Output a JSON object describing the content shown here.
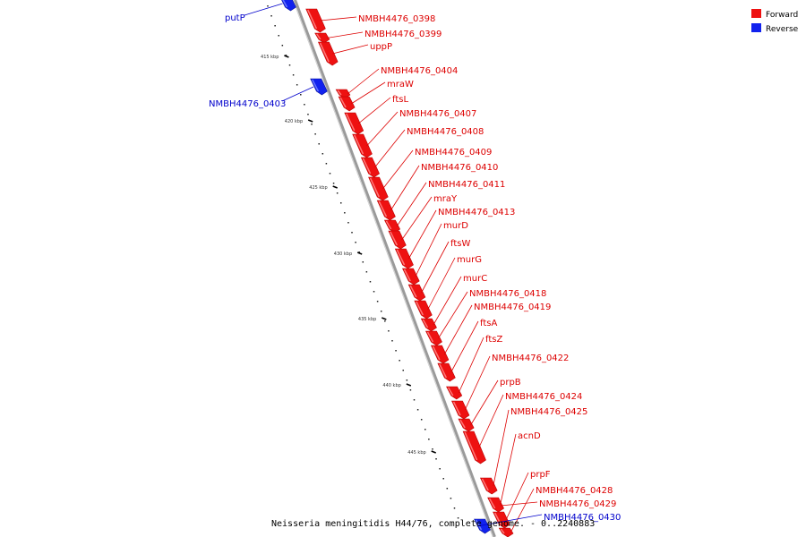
{
  "caption": "Neisseria meningitidis H44/76, complete genome. - 0..2240883",
  "legend": {
    "items": [
      {
        "label": "Forward",
        "color": "#ee1111"
      },
      {
        "label": "Reverse",
        "color": "#1122ee"
      }
    ]
  },
  "colors": {
    "forward": "#ee1111",
    "reverse": "#1122ee",
    "backbone": "#9a9a9a",
    "forward_label": "#dd0000",
    "reverse_label": "#0000cc"
  },
  "ticks": [
    "415 kbp",
    "420 kbp",
    "425 kbp",
    "430 kbp",
    "435 kbp",
    "440 kbp",
    "445 kbp"
  ],
  "genes": [
    {
      "name": "putP",
      "strand": "reverse"
    },
    {
      "name": "NMBH4476_0398",
      "strand": "forward"
    },
    {
      "name": "NMBH4476_0399",
      "strand": "forward"
    },
    {
      "name": "uppP",
      "strand": "forward"
    },
    {
      "name": "NMBH4476_0403",
      "strand": "reverse"
    },
    {
      "name": "NMBH4476_0404",
      "strand": "forward"
    },
    {
      "name": "mraW",
      "strand": "forward"
    },
    {
      "name": "ftsL",
      "strand": "forward"
    },
    {
      "name": "NMBH4476_0407",
      "strand": "forward"
    },
    {
      "name": "NMBH4476_0408",
      "strand": "forward"
    },
    {
      "name": "NMBH4476_0409",
      "strand": "forward"
    },
    {
      "name": "NMBH4476_0410",
      "strand": "forward"
    },
    {
      "name": "NMBH4476_0411",
      "strand": "forward"
    },
    {
      "name": "mraY",
      "strand": "forward"
    },
    {
      "name": "NMBH4476_0413",
      "strand": "forward"
    },
    {
      "name": "murD",
      "strand": "forward"
    },
    {
      "name": "ftsW",
      "strand": "forward"
    },
    {
      "name": "murG",
      "strand": "forward"
    },
    {
      "name": "murC",
      "strand": "forward"
    },
    {
      "name": "NMBH4476_0418",
      "strand": "forward"
    },
    {
      "name": "NMBH4476_0419",
      "strand": "forward"
    },
    {
      "name": "ftsA",
      "strand": "forward"
    },
    {
      "name": "ftsZ",
      "strand": "forward"
    },
    {
      "name": "NMBH4476_0422",
      "strand": "forward"
    },
    {
      "name": "prpB",
      "strand": "forward"
    },
    {
      "name": "NMBH4476_0424",
      "strand": "forward"
    },
    {
      "name": "NMBH4476_0425",
      "strand": "forward"
    },
    {
      "name": "acnD",
      "strand": "forward"
    },
    {
      "name": "prpF",
      "strand": "forward"
    },
    {
      "name": "NMBH4476_0428",
      "strand": "forward"
    },
    {
      "name": "NMBH4476_0429",
      "strand": "forward"
    },
    {
      "name": "NMBH4476_0430",
      "strand": "reverse"
    }
  ]
}
